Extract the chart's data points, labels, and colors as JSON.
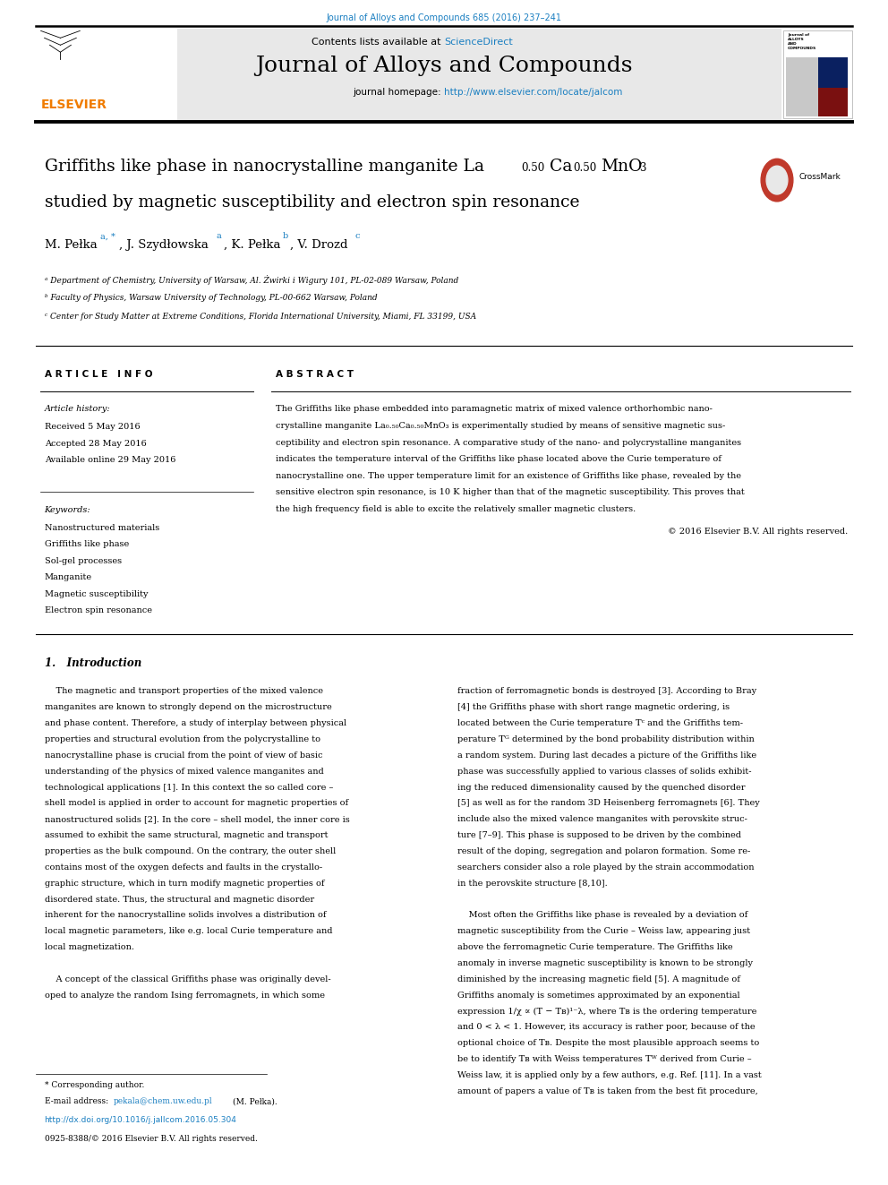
{
  "journal_ref": "Journal of Alloys and Compounds 685 (2016) 237–241",
  "journal_ref_color": "#1a7fc1",
  "sciencedirect_color": "#1a7fc1",
  "journal_name": "Journal of Alloys and Compounds",
  "homepage_url": "http://www.elsevier.com/locate/jalcom",
  "homepage_url_color": "#1a7fc1",
  "header_bg": "#e8e8e8",
  "article_info_title": "A R T I C L E   I N F O",
  "abstract_title": "A B S T R A C T",
  "article_history_label": "Article history:",
  "received": "Received 5 May 2016",
  "accepted": "Accepted 28 May 2016",
  "available": "Available online 29 May 2016",
  "keywords_label": "Keywords:",
  "keywords": [
    "Nanostructured materials",
    "Griffiths like phase",
    "Sol-gel processes",
    "Manganite",
    "Magnetic susceptibility",
    "Electron spin resonance"
  ],
  "copyright": "© 2016 Elsevier B.V. All rights reserved.",
  "intro_title": "1.   Introduction",
  "footnote_text": "* Corresponding author.",
  "footnote_email_label": "E-mail address: ",
  "footnote_email": "pekala@chem.uw.edu.pl",
  "footnote_email_color": "#1a7fc1",
  "footnote_person": "(M. Pełka).",
  "doi_text": "http://dx.doi.org/10.1016/j.jallcom.2016.05.304",
  "doi_color": "#1a7fc1",
  "issn_text": "0925-8388/© 2016 Elsevier B.V. All rights reserved.",
  "page_bg": "#ffffff",
  "elsevier_orange": "#f07c00",
  "elsevier_text": "ELSEVIER",
  "affil_a": "ᵃ Department of Chemistry, University of Warsaw, Al. Żwirki i Wigury 101, PL-02-089 Warsaw, Poland",
  "affil_b": "ᵇ Faculty of Physics, Warsaw University of Technology, PL-00-662 Warsaw, Poland",
  "affil_c": "ᶜ Center for Study Matter at Extreme Conditions, Florida International University, Miami, FL 33199, USA"
}
